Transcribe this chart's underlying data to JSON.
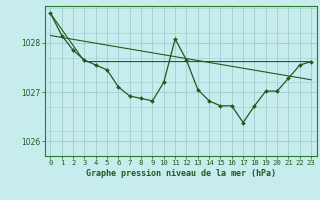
{
  "title": "Graphe pression niveau de la mer (hPa)",
  "bg_color": "#c6ecee",
  "line_color": "#1e5c1e",
  "grid_color": "#9ecece",
  "border_color": "#2d7a2d",
  "x_ticks": [
    0,
    1,
    2,
    3,
    4,
    5,
    6,
    7,
    8,
    9,
    10,
    11,
    12,
    13,
    14,
    15,
    16,
    17,
    18,
    19,
    20,
    21,
    22,
    23
  ],
  "ylim": [
    1025.7,
    1028.75
  ],
  "yticks": [
    1026,
    1027,
    1028
  ],
  "series_main": {
    "x": [
      0,
      1,
      2,
      3,
      4,
      5,
      6,
      7,
      8,
      9,
      10,
      11,
      12,
      13,
      14,
      15,
      16,
      17,
      18,
      19,
      20,
      21,
      22,
      23
    ],
    "y": [
      1028.6,
      1028.15,
      1027.85,
      1027.65,
      1027.55,
      1027.45,
      1027.1,
      1026.92,
      1026.87,
      1026.82,
      1027.2,
      1028.08,
      1027.65,
      1027.05,
      1026.82,
      1026.72,
      1026.72,
      1026.38,
      1026.72,
      1027.02,
      1027.02,
      1027.28,
      1027.55,
      1027.62
    ]
  },
  "series_flat": {
    "x": [
      0,
      3,
      23
    ],
    "y": [
      1028.6,
      1027.62,
      1027.62
    ]
  },
  "series_diagonal": {
    "x": [
      0,
      23
    ],
    "y": [
      1028.15,
      1027.25
    ]
  },
  "title_fontsize": 6.0,
  "tick_fontsize": 5.2
}
